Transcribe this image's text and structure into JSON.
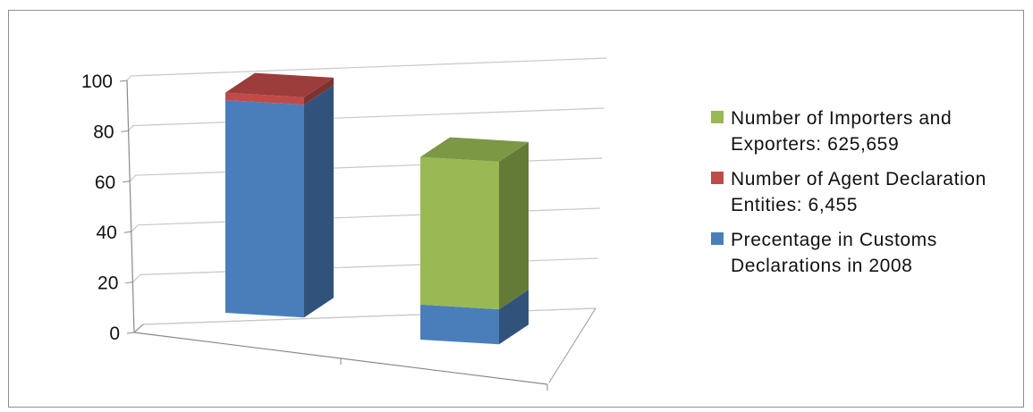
{
  "chart_data": {
    "type": "bar",
    "stacked": true,
    "three_d": true,
    "categories": [
      "",
      ""
    ],
    "ylim": [
      0,
      100
    ],
    "yticks": [
      0,
      20,
      40,
      60,
      80,
      100
    ],
    "grid": true,
    "legend_position": "right",
    "series": [
      {
        "name": "Precentage in Customs Declarations in 2008",
        "values": [
          85,
          14
        ],
        "color": "#4a7ebb"
      },
      {
        "name": "Number of Agent Declaration Entities: 6,455",
        "values": [
          3,
          0
        ],
        "color": "#be4b48"
      },
      {
        "name": "Number of Importers and Exporters: 625,659",
        "values": [
          0,
          59
        ],
        "color": "#98b954"
      }
    ],
    "legend": [
      {
        "label": "Number of Importers and Exporters: 625,659",
        "color": "#98b954"
      },
      {
        "label": "Number of Agent Declaration Entities: 6,455",
        "color": "#be4b48"
      },
      {
        "label": "Precentage in Customs Declarations in 2008",
        "color": "#4a7ebb"
      }
    ]
  }
}
